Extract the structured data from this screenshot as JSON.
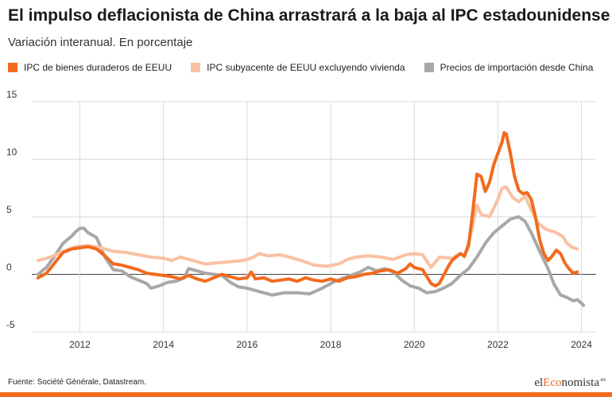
{
  "title": "El impulso deflacionista de China arrastrará a la baja al IPC estadounidense",
  "subtitle": "Variación interanual. En porcentaje",
  "source": "Fuente: Société Générale, Datastream.",
  "brand": {
    "prefix": "el",
    "accent": "Eco",
    "suffix": "nomista",
    "sup": ".es"
  },
  "colors": {
    "accent": "#f26b1d"
  },
  "chart_data": {
    "type": "line",
    "xlim": [
      2010.85,
      2024.35
    ],
    "ylim": [
      -5,
      15
    ],
    "y_ticks": [
      15,
      10,
      5,
      0,
      -5
    ],
    "x_ticks": [
      2012,
      2014,
      2016,
      2018,
      2020,
      2022,
      2024
    ],
    "grid": true,
    "legend_position": "top",
    "series": [
      {
        "name": "IPC de bienes duraderos de EEUU",
        "color": "#f26b1d",
        "points": [
          [
            2011.0,
            -0.3
          ],
          [
            2011.2,
            0.1
          ],
          [
            2011.4,
            1.0
          ],
          [
            2011.6,
            1.9
          ],
          [
            2011.8,
            2.2
          ],
          [
            2012.0,
            2.3
          ],
          [
            2012.2,
            2.4
          ],
          [
            2012.4,
            2.2
          ],
          [
            2012.6,
            1.6
          ],
          [
            2012.8,
            0.9
          ],
          [
            2013.0,
            0.8
          ],
          [
            2013.2,
            0.6
          ],
          [
            2013.4,
            0.4
          ],
          [
            2013.6,
            0.1
          ],
          [
            2013.8,
            0.0
          ],
          [
            2014.0,
            -0.1
          ],
          [
            2014.2,
            -0.2
          ],
          [
            2014.4,
            -0.4
          ],
          [
            2014.6,
            -0.1
          ],
          [
            2014.8,
            -0.4
          ],
          [
            2015.0,
            -0.6
          ],
          [
            2015.2,
            -0.3
          ],
          [
            2015.4,
            0.0
          ],
          [
            2015.6,
            -0.2
          ],
          [
            2015.8,
            -0.4
          ],
          [
            2016.0,
            -0.3
          ],
          [
            2016.1,
            0.2
          ],
          [
            2016.2,
            -0.4
          ],
          [
            2016.4,
            -0.3
          ],
          [
            2016.6,
            -0.6
          ],
          [
            2016.8,
            -0.5
          ],
          [
            2017.0,
            -0.4
          ],
          [
            2017.2,
            -0.6
          ],
          [
            2017.4,
            -0.3
          ],
          [
            2017.6,
            -0.5
          ],
          [
            2017.8,
            -0.6
          ],
          [
            2018.0,
            -0.4
          ],
          [
            2018.2,
            -0.6
          ],
          [
            2018.4,
            -0.3
          ],
          [
            2018.6,
            -0.2
          ],
          [
            2018.8,
            0.0
          ],
          [
            2019.0,
            0.1
          ],
          [
            2019.2,
            0.3
          ],
          [
            2019.4,
            0.4
          ],
          [
            2019.6,
            0.1
          ],
          [
            2019.8,
            0.5
          ],
          [
            2019.9,
            0.9
          ],
          [
            2020.0,
            0.6
          ],
          [
            2020.2,
            0.4
          ],
          [
            2020.4,
            -0.8
          ],
          [
            2020.5,
            -1.0
          ],
          [
            2020.6,
            -0.8
          ],
          [
            2020.8,
            0.6
          ],
          [
            2020.9,
            1.2
          ],
          [
            2021.0,
            1.5
          ],
          [
            2021.1,
            1.8
          ],
          [
            2021.2,
            1.6
          ],
          [
            2021.3,
            2.5
          ],
          [
            2021.4,
            5.5
          ],
          [
            2021.5,
            8.7
          ],
          [
            2021.6,
            8.5
          ],
          [
            2021.7,
            7.2
          ],
          [
            2021.8,
            8.0
          ],
          [
            2021.9,
            9.5
          ],
          [
            2022.0,
            10.5
          ],
          [
            2022.1,
            11.5
          ],
          [
            2022.15,
            12.3
          ],
          [
            2022.2,
            12.2
          ],
          [
            2022.3,
            10.5
          ],
          [
            2022.4,
            8.5
          ],
          [
            2022.5,
            7.3
          ],
          [
            2022.6,
            7.0
          ],
          [
            2022.7,
            7.1
          ],
          [
            2022.8,
            6.5
          ],
          [
            2022.9,
            5.0
          ],
          [
            2023.0,
            3.0
          ],
          [
            2023.1,
            1.8
          ],
          [
            2023.2,
            1.2
          ],
          [
            2023.3,
            1.6
          ],
          [
            2023.4,
            2.1
          ],
          [
            2023.5,
            1.8
          ],
          [
            2023.6,
            1.0
          ],
          [
            2023.7,
            0.5
          ],
          [
            2023.8,
            0.1
          ],
          [
            2023.9,
            0.2
          ]
        ]
      },
      {
        "name": "IPC subyacente de EEUU excluyendo vivienda",
        "color": "#f9c1a2",
        "points": [
          [
            2011.0,
            1.2
          ],
          [
            2011.3,
            1.5
          ],
          [
            2011.6,
            2.0
          ],
          [
            2011.9,
            2.4
          ],
          [
            2012.2,
            2.5
          ],
          [
            2012.5,
            2.3
          ],
          [
            2012.8,
            2.0
          ],
          [
            2013.1,
            1.9
          ],
          [
            2013.4,
            1.7
          ],
          [
            2013.7,
            1.5
          ],
          [
            2014.0,
            1.4
          ],
          [
            2014.2,
            1.2
          ],
          [
            2014.4,
            1.5
          ],
          [
            2014.6,
            1.3
          ],
          [
            2014.8,
            1.1
          ],
          [
            2015.0,
            0.9
          ],
          [
            2015.3,
            1.0
          ],
          [
            2015.6,
            1.1
          ],
          [
            2015.9,
            1.2
          ],
          [
            2016.1,
            1.4
          ],
          [
            2016.3,
            1.8
          ],
          [
            2016.5,
            1.6
          ],
          [
            2016.8,
            1.7
          ],
          [
            2017.0,
            1.5
          ],
          [
            2017.3,
            1.2
          ],
          [
            2017.6,
            0.8
          ],
          [
            2017.9,
            0.7
          ],
          [
            2018.2,
            0.9
          ],
          [
            2018.4,
            1.3
          ],
          [
            2018.6,
            1.5
          ],
          [
            2018.9,
            1.6
          ],
          [
            2019.2,
            1.5
          ],
          [
            2019.5,
            1.3
          ],
          [
            2019.8,
            1.7
          ],
          [
            2020.0,
            1.8
          ],
          [
            2020.2,
            1.7
          ],
          [
            2020.4,
            0.6
          ],
          [
            2020.6,
            1.5
          ],
          [
            2020.9,
            1.4
          ],
          [
            2021.1,
            1.8
          ],
          [
            2021.2,
            1.5
          ],
          [
            2021.35,
            3.5
          ],
          [
            2021.5,
            6.0
          ],
          [
            2021.6,
            5.2
          ],
          [
            2021.8,
            5.0
          ],
          [
            2022.0,
            6.5
          ],
          [
            2022.1,
            7.5
          ],
          [
            2022.2,
            7.6
          ],
          [
            2022.35,
            6.7
          ],
          [
            2022.5,
            6.3
          ],
          [
            2022.65,
            6.8
          ],
          [
            2022.8,
            5.6
          ],
          [
            2022.95,
            4.5
          ],
          [
            2023.15,
            3.9
          ],
          [
            2023.35,
            3.7
          ],
          [
            2023.55,
            3.3
          ],
          [
            2023.65,
            2.7
          ],
          [
            2023.8,
            2.3
          ],
          [
            2023.9,
            2.2
          ]
        ]
      },
      {
        "name": "Precios de importación desde China",
        "color": "#a8a8a8",
        "points": [
          [
            2011.0,
            0.0
          ],
          [
            2011.2,
            0.6
          ],
          [
            2011.4,
            1.6
          ],
          [
            2011.6,
            2.7
          ],
          [
            2011.8,
            3.3
          ],
          [
            2011.9,
            3.7
          ],
          [
            2012.0,
            4.0
          ],
          [
            2012.1,
            4.0
          ],
          [
            2012.2,
            3.6
          ],
          [
            2012.4,
            3.2
          ],
          [
            2012.6,
            1.5
          ],
          [
            2012.8,
            0.4
          ],
          [
            2013.0,
            0.3
          ],
          [
            2013.2,
            -0.2
          ],
          [
            2013.4,
            -0.5
          ],
          [
            2013.6,
            -0.8
          ],
          [
            2013.7,
            -1.2
          ],
          [
            2013.9,
            -1.0
          ],
          [
            2014.1,
            -0.7
          ],
          [
            2014.3,
            -0.6
          ],
          [
            2014.5,
            -0.3
          ],
          [
            2014.6,
            0.5
          ],
          [
            2014.8,
            0.3
          ],
          [
            2015.0,
            0.1
          ],
          [
            2015.2,
            0.0
          ],
          [
            2015.4,
            -0.1
          ],
          [
            2015.6,
            -0.7
          ],
          [
            2015.8,
            -1.1
          ],
          [
            2016.0,
            -1.2
          ],
          [
            2016.3,
            -1.5
          ],
          [
            2016.6,
            -1.8
          ],
          [
            2016.9,
            -1.6
          ],
          [
            2017.2,
            -1.6
          ],
          [
            2017.5,
            -1.7
          ],
          [
            2017.8,
            -1.2
          ],
          [
            2018.1,
            -0.6
          ],
          [
            2018.4,
            -0.2
          ],
          [
            2018.7,
            0.2
          ],
          [
            2018.9,
            0.6
          ],
          [
            2019.1,
            0.3
          ],
          [
            2019.3,
            0.5
          ],
          [
            2019.5,
            0.2
          ],
          [
            2019.7,
            -0.5
          ],
          [
            2019.9,
            -1.0
          ],
          [
            2020.1,
            -1.2
          ],
          [
            2020.3,
            -1.6
          ],
          [
            2020.5,
            -1.5
          ],
          [
            2020.7,
            -1.2
          ],
          [
            2020.9,
            -0.8
          ],
          [
            2021.1,
            -0.1
          ],
          [
            2021.3,
            0.5
          ],
          [
            2021.5,
            1.5
          ],
          [
            2021.7,
            2.7
          ],
          [
            2021.9,
            3.6
          ],
          [
            2022.1,
            4.2
          ],
          [
            2022.3,
            4.8
          ],
          [
            2022.5,
            5.0
          ],
          [
            2022.65,
            4.6
          ],
          [
            2022.8,
            3.6
          ],
          [
            2023.0,
            2.0
          ],
          [
            2023.2,
            0.5
          ],
          [
            2023.35,
            -0.9
          ],
          [
            2023.5,
            -1.8
          ],
          [
            2023.65,
            -2.0
          ],
          [
            2023.8,
            -2.3
          ],
          [
            2023.9,
            -2.2
          ],
          [
            2024.0,
            -2.5
          ],
          [
            2024.05,
            -2.7
          ]
        ]
      }
    ]
  }
}
